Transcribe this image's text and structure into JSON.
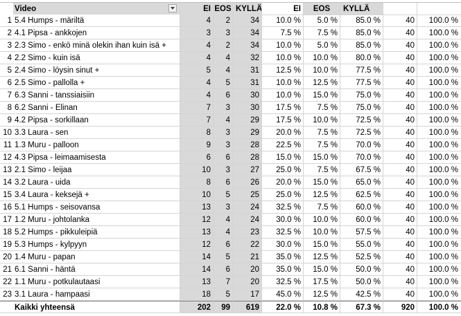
{
  "header": {
    "video": "Video",
    "ei": "EI",
    "eos": "EOS",
    "kylla": "KYLLÄ",
    "ei_pct": "EI",
    "eos_pct": "EOS",
    "kylla_pct": "KYLLÄ",
    "total": "",
    "total_pct": ""
  },
  "rows": [
    {
      "n": "1",
      "video": "5.4 Humps - märiltä",
      "ei": "4",
      "eos": "2",
      "kylla": "34",
      "ei_pct": "10.0 %",
      "eos_pct": "5.0 %",
      "kylla_pct": "85.0 %",
      "total": "40",
      "total_pct": "100.0 %"
    },
    {
      "n": "2",
      "video": "4.1 Pipsa - ankkojen",
      "ei": "3",
      "eos": "3",
      "kylla": "34",
      "ei_pct": "7.5 %",
      "eos_pct": "7.5 %",
      "kylla_pct": "85.0 %",
      "total": "40",
      "total_pct": "100.0 %"
    },
    {
      "n": "3",
      "video": "2.3 Simo - enkö minä olekin ihan kuin isä +",
      "ei": "4",
      "eos": "2",
      "kylla": "34",
      "ei_pct": "10.0 %",
      "eos_pct": "5.0 %",
      "kylla_pct": "85.0 %",
      "total": "40",
      "total_pct": "100.0 %"
    },
    {
      "n": "4",
      "video": "2.2 Simo - kuin isä",
      "ei": "4",
      "eos": "4",
      "kylla": "32",
      "ei_pct": "10.0 %",
      "eos_pct": "10.0 %",
      "kylla_pct": "80.0 %",
      "total": "40",
      "total_pct": "100.0 %"
    },
    {
      "n": "5",
      "video": "2.4 Simo - löysin sinut +",
      "ei": "5",
      "eos": "4",
      "kylla": "31",
      "ei_pct": "12.5 %",
      "eos_pct": "10.0 %",
      "kylla_pct": "77.5 %",
      "total": "40",
      "total_pct": "100.0 %"
    },
    {
      "n": "6",
      "video": "2.5 Simo - pallolla +",
      "ei": "4",
      "eos": "5",
      "kylla": "31",
      "ei_pct": "10.0 %",
      "eos_pct": "12.5 %",
      "kylla_pct": "77.5 %",
      "total": "40",
      "total_pct": "100.0 %"
    },
    {
      "n": "7",
      "video": "6.3 Sanni - tanssiaisiin",
      "ei": "4",
      "eos": "6",
      "kylla": "30",
      "ei_pct": "10.0 %",
      "eos_pct": "15.0 %",
      "kylla_pct": "75.0 %",
      "total": "40",
      "total_pct": "100.0 %"
    },
    {
      "n": "8",
      "video": "6.2 Sanni - Elinan",
      "ei": "7",
      "eos": "3",
      "kylla": "30",
      "ei_pct": "17.5 %",
      "eos_pct": "7.5 %",
      "kylla_pct": "75.0 %",
      "total": "40",
      "total_pct": "100.0 %"
    },
    {
      "n": "9",
      "video": "4.2 Pipsa - sorkillaan",
      "ei": "7",
      "eos": "4",
      "kylla": "29",
      "ei_pct": "17.5 %",
      "eos_pct": "10.0 %",
      "kylla_pct": "72.5 %",
      "total": "40",
      "total_pct": "100.0 %"
    },
    {
      "n": "10",
      "video": "3.3 Laura - sen",
      "ei": "8",
      "eos": "3",
      "kylla": "29",
      "ei_pct": "20.0 %",
      "eos_pct": "7.5 %",
      "kylla_pct": "72.5 %",
      "total": "40",
      "total_pct": "100.0 %"
    },
    {
      "n": "11",
      "video": "1.3 Muru - palloon",
      "ei": "9",
      "eos": "3",
      "kylla": "28",
      "ei_pct": "22.5 %",
      "eos_pct": "7.5 %",
      "kylla_pct": "70.0 %",
      "total": "40",
      "total_pct": "100.0 %"
    },
    {
      "n": "12",
      "video": "4.3 Pipsa - leimaamisesta",
      "ei": "6",
      "eos": "6",
      "kylla": "28",
      "ei_pct": "15.0 %",
      "eos_pct": "15.0 %",
      "kylla_pct": "70.0 %",
      "total": "40",
      "total_pct": "100.0 %"
    },
    {
      "n": "13",
      "video": "2.1 Simo - leijaa",
      "ei": "10",
      "eos": "3",
      "kylla": "27",
      "ei_pct": "25.0 %",
      "eos_pct": "7.5 %",
      "kylla_pct": "67.5 %",
      "total": "40",
      "total_pct": "100.0 %"
    },
    {
      "n": "14",
      "video": "3.2 Laura - uida",
      "ei": "8",
      "eos": "6",
      "kylla": "26",
      "ei_pct": "20.0 %",
      "eos_pct": "15.0 %",
      "kylla_pct": "65.0 %",
      "total": "40",
      "total_pct": "100.0 %"
    },
    {
      "n": "15",
      "video": "3.4 Laura - keksejä +",
      "ei": "10",
      "eos": "5",
      "kylla": "25",
      "ei_pct": "25.0 %",
      "eos_pct": "12.5 %",
      "kylla_pct": "62.5 %",
      "total": "40",
      "total_pct": "100.0 %"
    },
    {
      "n": "16",
      "video": "5.1 Humps - seisovansa",
      "ei": "13",
      "eos": "3",
      "kylla": "24",
      "ei_pct": "32.5 %",
      "eos_pct": "7.5 %",
      "kylla_pct": "60.0 %",
      "total": "40",
      "total_pct": "100.0 %"
    },
    {
      "n": "17",
      "video": "1.2 Muru - johtolanka",
      "ei": "12",
      "eos": "4",
      "kylla": "24",
      "ei_pct": "30.0 %",
      "eos_pct": "10.0 %",
      "kylla_pct": "60.0 %",
      "total": "40",
      "total_pct": "100.0 %"
    },
    {
      "n": "18",
      "video": "5.2 Humps - pikkuleipiä",
      "ei": "13",
      "eos": "4",
      "kylla": "23",
      "ei_pct": "32.5 %",
      "eos_pct": "10.0 %",
      "kylla_pct": "57.5 %",
      "total": "40",
      "total_pct": "100.0 %"
    },
    {
      "n": "19",
      "video": "5.3 Humps - kylpyyn",
      "ei": "12",
      "eos": "6",
      "kylla": "22",
      "ei_pct": "30.0 %",
      "eos_pct": "15.0 %",
      "kylla_pct": "55.0 %",
      "total": "40",
      "total_pct": "100.0 %"
    },
    {
      "n": "20",
      "video": "1.4 Muru - papan",
      "ei": "14",
      "eos": "5",
      "kylla": "21",
      "ei_pct": "35.0 %",
      "eos_pct": "12.5 %",
      "kylla_pct": "52.5 %",
      "total": "40",
      "total_pct": "100.0 %"
    },
    {
      "n": "21",
      "video": "6.1 Sanni - häntä",
      "ei": "14",
      "eos": "6",
      "kylla": "20",
      "ei_pct": "35.0 %",
      "eos_pct": "15.0 %",
      "kylla_pct": "50.0 %",
      "total": "40",
      "total_pct": "100.0 %"
    },
    {
      "n": "22",
      "video": "1.1 Muru - potkulautaasi",
      "ei": "13",
      "eos": "7",
      "kylla": "20",
      "ei_pct": "32.5 %",
      "eos_pct": "17.5 %",
      "kylla_pct": "50.0 %",
      "total": "40",
      "total_pct": "100.0 %"
    },
    {
      "n": "23",
      "video": "3.1 Laura - hampaasi",
      "ei": "18",
      "eos": "5",
      "kylla": "17",
      "ei_pct": "45.0 %",
      "eos_pct": "12.5 %",
      "kylla_pct": "42.5 %",
      "total": "40",
      "total_pct": "100.0 %"
    }
  ],
  "totals": {
    "n": "",
    "video": "Kaikki yhteensä",
    "ei": "202",
    "eos": "99",
    "kylla": "619",
    "ei_pct": "22.0 %",
    "eos_pct": "10.8 %",
    "kylla_pct": "67.3 %",
    "total": "920",
    "total_pct": "100.0 %"
  },
  "colors": {
    "shaded_columns": "#d9d9d9",
    "gridline": "#d4d4d4"
  },
  "icons": {
    "filter": "dropdown-filter-icon"
  }
}
